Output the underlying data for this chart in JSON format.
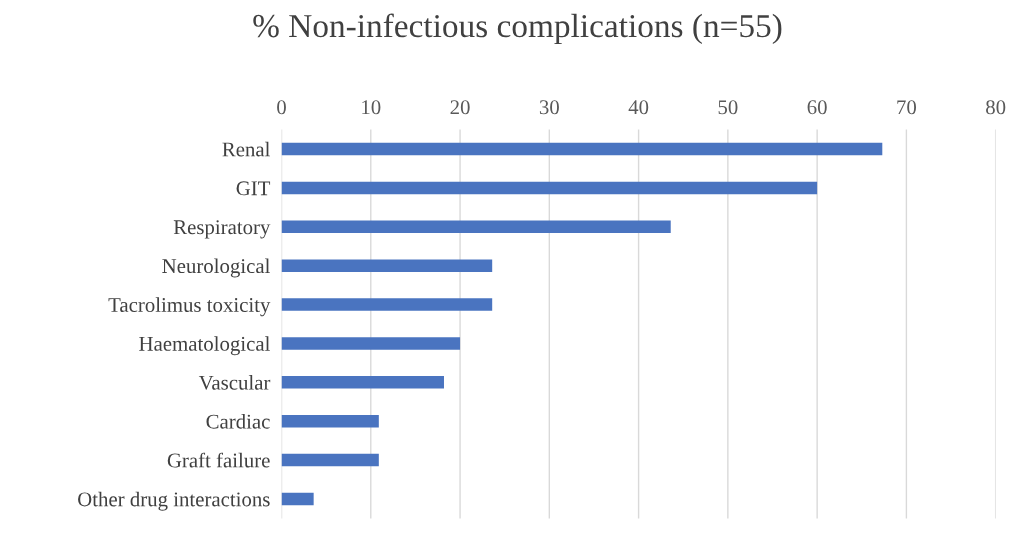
{
  "chart_data": {
    "type": "bar",
    "orientation": "horizontal",
    "title": "% Non-infectious complications (n=55)",
    "categories": [
      "Renal",
      "GIT",
      "Respiratory",
      "Neurological",
      "Tacrolimus toxicity",
      "Haematological",
      "Vascular",
      "Cardiac",
      "Graft failure",
      "Other drug interactions"
    ],
    "values": [
      67.3,
      60,
      43.6,
      23.6,
      23.6,
      20,
      18.2,
      10.9,
      10.9,
      3.6
    ],
    "color": "#4a74c0",
    "xlim": [
      0,
      80
    ],
    "xticks": [
      0,
      10,
      20,
      30,
      40,
      50,
      60,
      70,
      80
    ],
    "grid": "x"
  }
}
